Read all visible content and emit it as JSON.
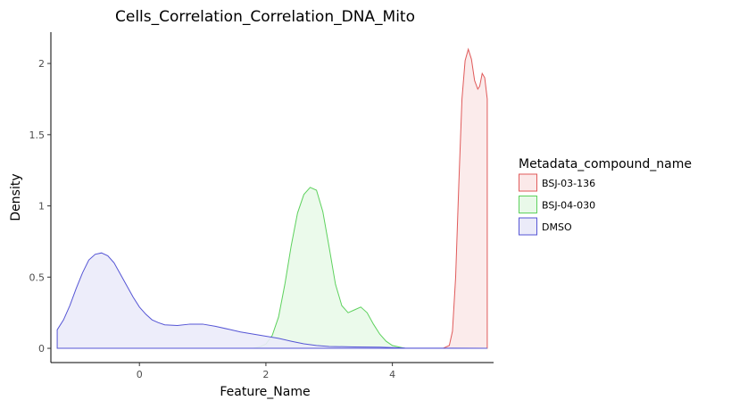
{
  "chart_data": {
    "type": "area",
    "title": "Cells_Correlation_Correlation_DNA_Mito",
    "xlabel": "Feature_Name",
    "ylabel": "Density",
    "xlim": [
      -1.4,
      5.6
    ],
    "ylim": [
      -0.1,
      2.22
    ],
    "x_ticks": [
      0,
      2,
      4
    ],
    "x_tick_labels": [
      "0",
      "2",
      "4"
    ],
    "y_ticks": [
      0,
      0.5,
      1,
      1.5,
      2
    ],
    "y_tick_labels": [
      "0",
      "0.5",
      "1",
      "1.5",
      "2"
    ],
    "grid": false,
    "legend": {
      "title": "Metadata_compound_name",
      "position": "right"
    },
    "series": [
      {
        "name": "BSJ-03-136",
        "color": "#e05a5a",
        "fill": "#fbe9e9",
        "x": [
          -1.3,
          4.8,
          4.9,
          4.95,
          5.0,
          5.05,
          5.1,
          5.15,
          5.2,
          5.25,
          5.3,
          5.35,
          5.38,
          5.42,
          5.46,
          5.5,
          5.5
        ],
        "y": [
          0,
          0,
          0.02,
          0.12,
          0.5,
          1.15,
          1.75,
          2.02,
          2.1,
          2.03,
          1.88,
          1.82,
          1.84,
          1.93,
          1.9,
          1.75,
          0
        ]
      },
      {
        "name": "BSJ-04-030",
        "color": "#5dd15d",
        "fill": "#e9f9e9",
        "x": [
          -1.3,
          1.8,
          1.9,
          2.0,
          2.1,
          2.2,
          2.3,
          2.4,
          2.5,
          2.6,
          2.7,
          2.8,
          2.9,
          3.0,
          3.1,
          3.2,
          3.3,
          3.4,
          3.5,
          3.6,
          3.7,
          3.8,
          3.9,
          4.0,
          4.1,
          4.2,
          5.5
        ],
        "y": [
          0,
          0,
          0.01,
          0.03,
          0.09,
          0.22,
          0.45,
          0.72,
          0.95,
          1.08,
          1.13,
          1.11,
          0.96,
          0.71,
          0.45,
          0.3,
          0.25,
          0.27,
          0.29,
          0.25,
          0.17,
          0.1,
          0.05,
          0.02,
          0.01,
          0,
          0
        ]
      },
      {
        "name": "DMSO",
        "color": "#5555d5",
        "fill": "#ebebf9",
        "x": [
          -1.3,
          -1.3,
          -1.2,
          -1.1,
          -1.0,
          -0.9,
          -0.8,
          -0.7,
          -0.6,
          -0.5,
          -0.4,
          -0.3,
          -0.2,
          -0.1,
          0.0,
          0.1,
          0.2,
          0.3,
          0.4,
          0.6,
          0.8,
          1.0,
          1.2,
          1.4,
          1.6,
          1.8,
          2.0,
          2.2,
          2.4,
          2.6,
          2.8,
          3.0,
          3.4,
          3.8,
          4.2,
          5.5
        ],
        "y": [
          0,
          0.13,
          0.2,
          0.3,
          0.42,
          0.53,
          0.62,
          0.66,
          0.67,
          0.65,
          0.6,
          0.52,
          0.44,
          0.36,
          0.29,
          0.24,
          0.2,
          0.18,
          0.165,
          0.16,
          0.17,
          0.17,
          0.155,
          0.135,
          0.115,
          0.1,
          0.085,
          0.07,
          0.05,
          0.032,
          0.02,
          0.013,
          0.01,
          0.008,
          0.002,
          0.0
        ]
      }
    ]
  }
}
